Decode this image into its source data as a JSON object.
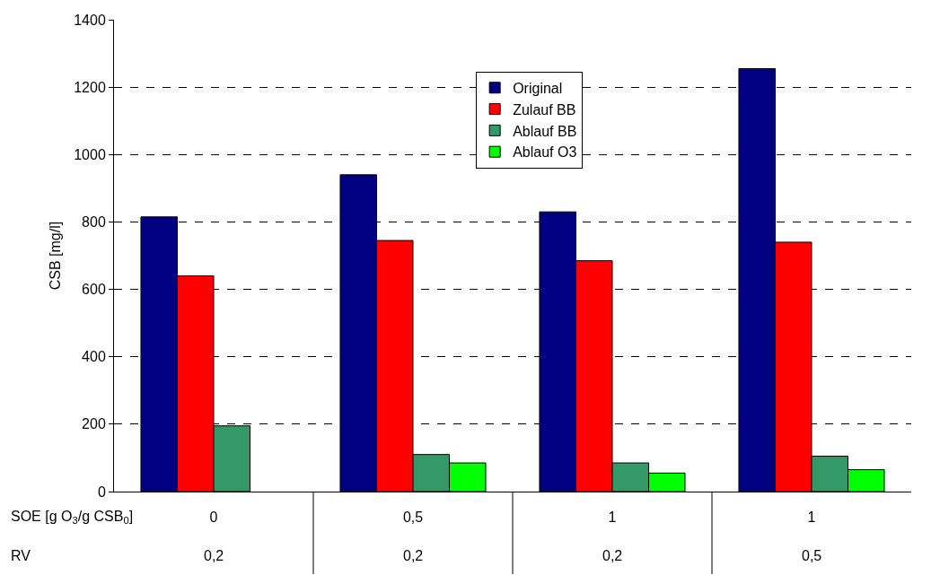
{
  "chart_data": {
    "type": "bar",
    "ylabel": "CSB [mg/l]",
    "categories": [
      "0",
      "0,5",
      "1",
      "1"
    ],
    "series": [
      {
        "name": "Original",
        "color": "#000080",
        "values": [
          815,
          940,
          830,
          1255
        ]
      },
      {
        "name": "Zulauf BB",
        "color": "#ff0000",
        "values": [
          640,
          745,
          685,
          740
        ]
      },
      {
        "name": "Ablauf BB",
        "color": "#339966",
        "values": [
          195,
          110,
          85,
          105
        ]
      },
      {
        "name": "Ablauf O3",
        "color": "#00ff00",
        "values": [
          null,
          85,
          55,
          65
        ]
      }
    ],
    "ylim": [
      0,
      1400
    ],
    "yticks": [
      0,
      200,
      400,
      600,
      800,
      1000,
      1200,
      1400
    ],
    "grid": "y",
    "legend": "top center",
    "annotations": [
      "SOE [g O$_{3}$/g CSB$_{0}$]",
      "RV",
      "0,2",
      "0,2",
      "0,2",
      "0,5"
    ]
  }
}
